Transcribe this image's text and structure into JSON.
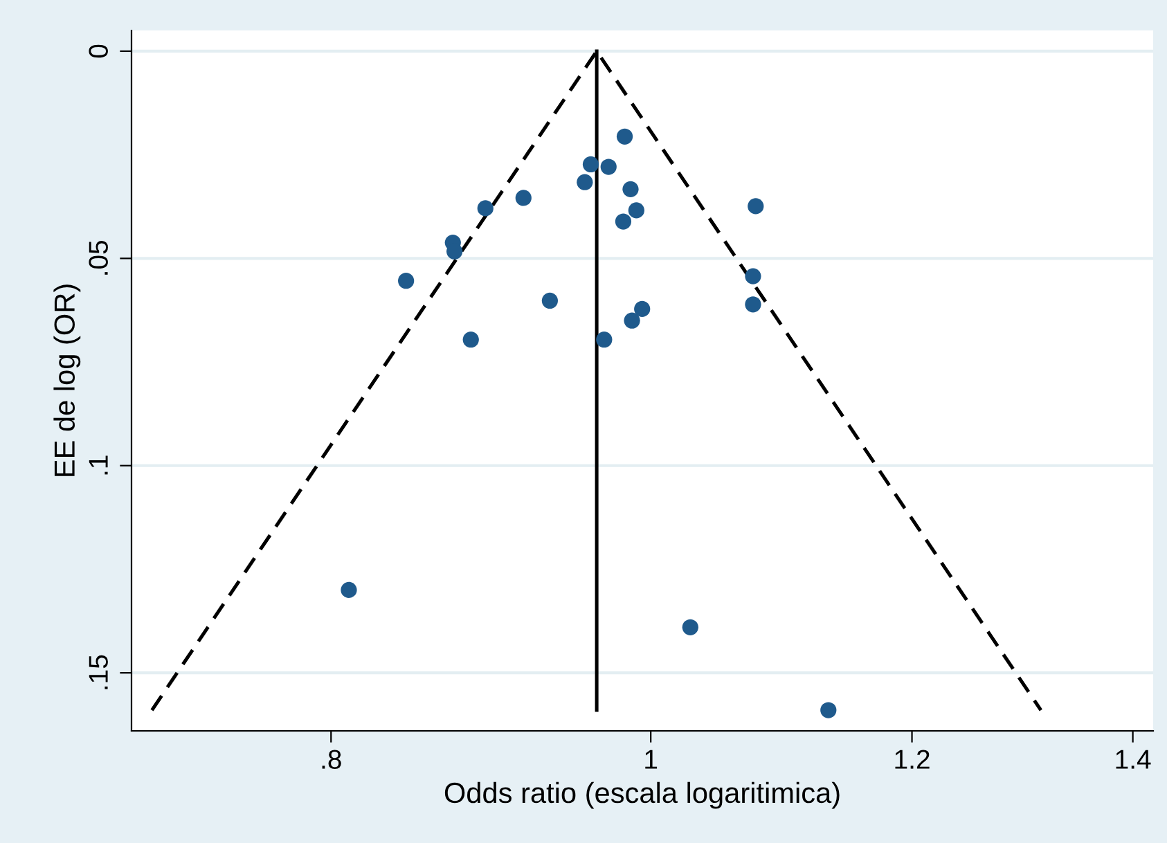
{
  "chart_data": {
    "type": "scatter",
    "xlabel": "Odds ratio (escala logaritimica)",
    "ylabel": "EE de log (OR)",
    "log": "x",
    "grid": "y",
    "xlim": [
      0.696,
      1.42
    ],
    "xticks": [
      {
        "value": 0.8,
        "label": ".8"
      },
      1,
      1.2,
      1.4
    ],
    "ylim": [
      0.164,
      -0.005
    ],
    "yticks": [
      0,
      {
        "value": 0.05,
        "label": ".05"
      },
      {
        "value": 0.1,
        "label": ".1"
      },
      {
        "value": 0.15,
        "label": ".15"
      }
    ],
    "series": [
      {
        "type": "line",
        "color": "#000000",
        "line_style": "dashed",
        "marker": "none",
        "x": [
          0.706,
          0.963,
          1.313
        ],
        "values": [
          0.159,
          0,
          0.159
        ]
      },
      {
        "type": "line",
        "color": "#000000",
        "line_style": "solid",
        "marker": "none",
        "x": [
          0.963,
          0.963
        ],
        "values": [
          0,
          0.159
        ]
      },
      {
        "color": "#1f5a8c",
        "marker": "circle",
        "x": [
          0.982,
          0.959,
          0.971,
          0.955,
          0.986,
          0.915,
          0.891,
          1.076,
          0.99,
          0.981,
          0.871,
          0.872,
          0.843,
          1.074,
          1.074,
          0.932,
          0.994,
          0.987,
          0.882,
          0.968,
          0.81,
          1.028,
          1.132
        ],
        "values": [
          0.0206,
          0.0273,
          0.0279,
          0.0316,
          0.0333,
          0.0354,
          0.0379,
          0.0374,
          0.0384,
          0.0411,
          0.0462,
          0.0483,
          0.0554,
          0.0543,
          0.0611,
          0.0602,
          0.0622,
          0.065,
          0.0696,
          0.0696,
          0.13,
          0.139,
          0.159
        ]
      }
    ]
  }
}
